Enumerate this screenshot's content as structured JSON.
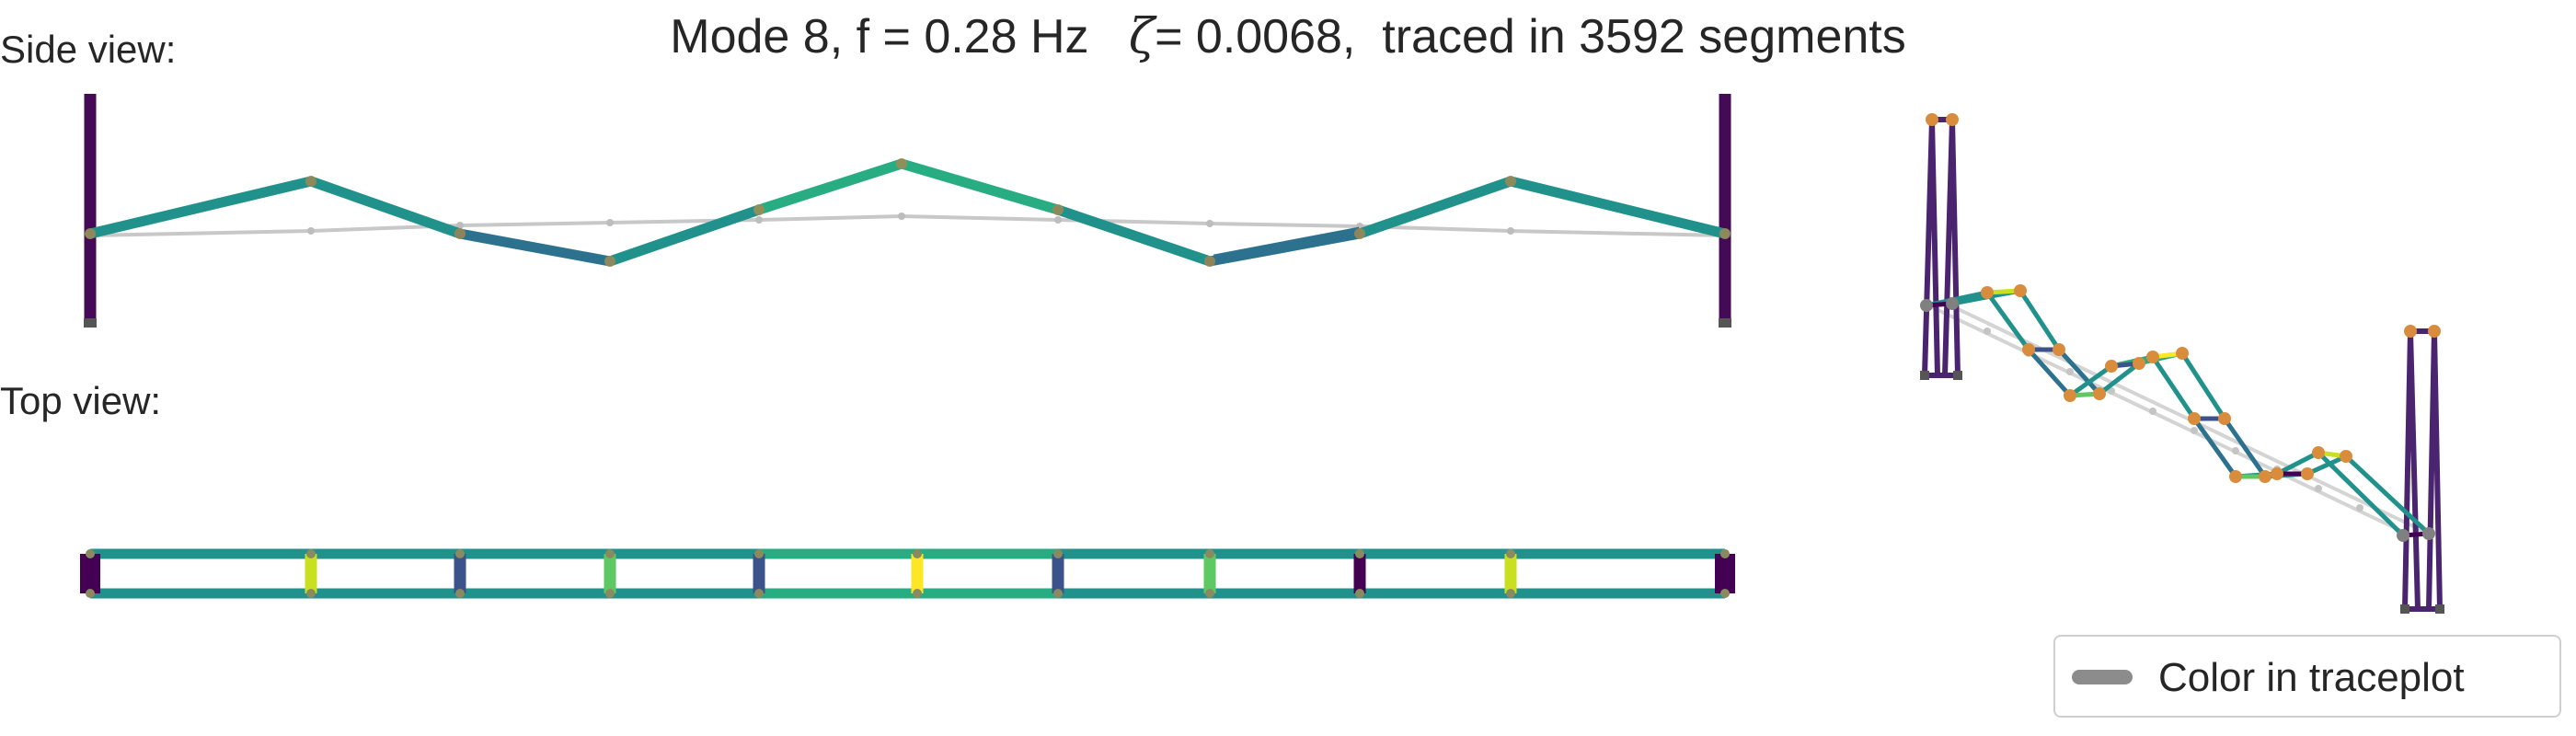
{
  "title": {
    "prefix": "Mode 8, f = 0.28 Hz",
    "zeta_symbol": "ζ",
    "suffix": "= 0.0068,  traced in 3592 segments"
  },
  "side_view": {
    "label": "Side view:",
    "undeformed_color": "#c8c8c8",
    "tower_color": "#440a55"
  },
  "top_view": {
    "label": "Top view:"
  },
  "perspective_view": {
    "node_color": "#d98c3c",
    "support_color": "#808080",
    "tower_color": "#4b2470"
  },
  "legend": {
    "label": "Color in traceplot",
    "swatch_color": "#8c8c8c"
  },
  "colormap": "viridis"
}
